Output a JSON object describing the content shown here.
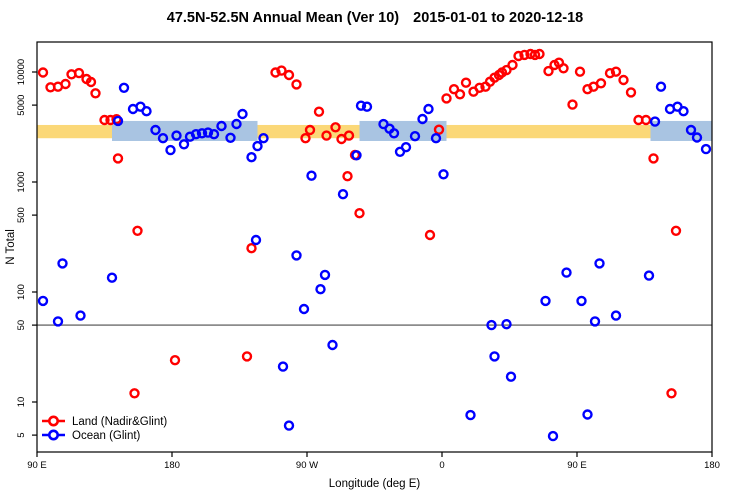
{
  "header": {
    "title_range": "47.5N-52.5N Annual Mean (Ver 10)",
    "title_dates": "2015-01-01 to 2020-12-18"
  },
  "chart_data": {
    "type": "scatter",
    "title": "47.5N-52.5N Annual Mean (Ver 10)   2015-01-01 to 2020-12-18",
    "xlabel": "Longitude (deg E)",
    "ylabel": "N Total",
    "x_axis": {
      "range_deg_east": [
        90,
        540
      ],
      "ticks": [
        {
          "lon": 90,
          "label": "90 E"
        },
        {
          "lon": 180,
          "label": "180"
        },
        {
          "lon": 270,
          "label": "90 W"
        },
        {
          "lon": 360,
          "label": "0"
        },
        {
          "lon": 450,
          "label": "90 E"
        },
        {
          "lon": 540,
          "label": "180"
        }
      ]
    },
    "y_axis": {
      "scale": "log10",
      "range": [
        3.3,
        19500
      ],
      "ticks": [
        5,
        10,
        50,
        100,
        500,
        1000,
        5000,
        10000
      ]
    },
    "grid": false,
    "reference_line": {
      "y": 50,
      "color": "#8c8c8c"
    },
    "bands": {
      "land_mean_band": {
        "value_low": 2500,
        "value_high": 3300,
        "color": "#FBD878",
        "lon_segments": [
          [
            90,
            540
          ]
        ]
      },
      "ocean_mean_band": {
        "value_low": 2360,
        "value_high": 3590,
        "color": "#A9C4E2",
        "lon_segments": [
          [
            140,
            237
          ],
          [
            305,
            363
          ],
          [
            499,
            540
          ]
        ]
      }
    },
    "legend": {
      "position": "bottom-left",
      "boxed": false
    },
    "series": [
      {
        "name": "Land (Nadir&Glint)",
        "color": "#FF0000",
        "marker": "open-circle",
        "points": [
          [
            94,
            9900
          ],
          [
            99,
            7260
          ],
          [
            104,
            7350
          ],
          [
            109,
            7780
          ],
          [
            113,
            9530
          ],
          [
            118,
            9780
          ],
          [
            123,
            8640
          ],
          [
            126,
            8110
          ],
          [
            129,
            6400
          ],
          [
            135,
            3660
          ],
          [
            139,
            3660
          ],
          [
            143,
            3720
          ],
          [
            144,
            1640
          ],
          [
            155,
            12
          ],
          [
            157,
            360
          ],
          [
            182,
            24
          ],
          [
            230,
            26
          ],
          [
            233,
            250
          ],
          [
            249,
            9900
          ],
          [
            253,
            10300
          ],
          [
            258,
            9390
          ],
          [
            263,
            7720
          ],
          [
            269,
            2500
          ],
          [
            272,
            2970
          ],
          [
            278,
            4360
          ],
          [
            283,
            2640
          ],
          [
            289,
            3140
          ],
          [
            293,
            2460
          ],
          [
            297,
            1130
          ],
          [
            298,
            2640
          ],
          [
            302,
            1760
          ],
          [
            305,
            520
          ],
          [
            352,
            330
          ],
          [
            358,
            2990
          ],
          [
            363,
            5750
          ],
          [
            368,
            6970
          ],
          [
            372,
            6270
          ],
          [
            376,
            8000
          ],
          [
            381,
            6620
          ],
          [
            385,
            7190
          ],
          [
            389,
            7350
          ],
          [
            392,
            8170
          ],
          [
            395,
            8870
          ],
          [
            398,
            9390
          ],
          [
            400,
            9900
          ],
          [
            403,
            10400
          ],
          [
            407,
            11580
          ],
          [
            411,
            13970
          ],
          [
            415,
            14290
          ],
          [
            419,
            14590
          ],
          [
            422,
            14290
          ],
          [
            425,
            14590
          ],
          [
            431,
            10200
          ],
          [
            435,
            11580
          ],
          [
            438,
            12150
          ],
          [
            441,
            10800
          ],
          [
            447,
            5050
          ],
          [
            452,
            10070
          ],
          [
            457,
            6970
          ],
          [
            461,
            7350
          ],
          [
            466,
            7890
          ],
          [
            472,
            9760
          ],
          [
            476,
            10070
          ],
          [
            481,
            8450
          ],
          [
            486,
            6530
          ],
          [
            491,
            3660
          ],
          [
            496,
            3660
          ],
          [
            501,
            1640
          ],
          [
            513,
            12
          ],
          [
            516,
            360
          ]
        ]
      },
      {
        "name": "Ocean (Glint)",
        "color": "#0000FF",
        "marker": "open-circle",
        "points": [
          [
            94,
            83
          ],
          [
            104,
            54
          ],
          [
            107,
            182
          ],
          [
            119,
            61
          ],
          [
            140,
            135
          ],
          [
            144,
            3590
          ],
          [
            148,
            7190
          ],
          [
            154,
            4610
          ],
          [
            159,
            4840
          ],
          [
            163,
            4400
          ],
          [
            169,
            2970
          ],
          [
            174,
            2500
          ],
          [
            179,
            1950
          ],
          [
            183,
            2640
          ],
          [
            188,
            2200
          ],
          [
            192,
            2580
          ],
          [
            196,
            2720
          ],
          [
            200,
            2770
          ],
          [
            204,
            2810
          ],
          [
            208,
            2720
          ],
          [
            213,
            3230
          ],
          [
            219,
            2520
          ],
          [
            223,
            3370
          ],
          [
            227,
            4150
          ],
          [
            233,
            1680
          ],
          [
            236,
            297
          ],
          [
            237,
            2120
          ],
          [
            241,
            2500
          ],
          [
            254,
            21
          ],
          [
            258,
            6.1
          ],
          [
            263,
            215
          ],
          [
            268,
            70
          ],
          [
            273,
            1140
          ],
          [
            279,
            106
          ],
          [
            282,
            143
          ],
          [
            287,
            33
          ],
          [
            294,
            775
          ],
          [
            303,
            1750
          ],
          [
            306,
            4940
          ],
          [
            310,
            4840
          ],
          [
            321,
            3360
          ],
          [
            325,
            3050
          ],
          [
            328,
            2770
          ],
          [
            332,
            1880
          ],
          [
            336,
            2070
          ],
          [
            342,
            2610
          ],
          [
            347,
            3740
          ],
          [
            351,
            4610
          ],
          [
            356,
            2500
          ],
          [
            361,
            1175
          ],
          [
            379,
            7.6
          ],
          [
            393,
            50
          ],
          [
            395,
            26
          ],
          [
            403,
            51
          ],
          [
            406,
            17
          ],
          [
            429,
            83
          ],
          [
            434,
            4.9
          ],
          [
            443,
            150
          ],
          [
            453,
            83
          ],
          [
            457,
            7.7
          ],
          [
            462,
            54
          ],
          [
            465,
            182
          ],
          [
            476,
            61
          ],
          [
            498,
            141
          ],
          [
            502,
            3540
          ],
          [
            506,
            7350
          ],
          [
            512,
            4610
          ],
          [
            517,
            4840
          ],
          [
            521,
            4400
          ],
          [
            526,
            2970
          ],
          [
            530,
            2540
          ],
          [
            536,
            1990
          ]
        ]
      }
    ]
  }
}
